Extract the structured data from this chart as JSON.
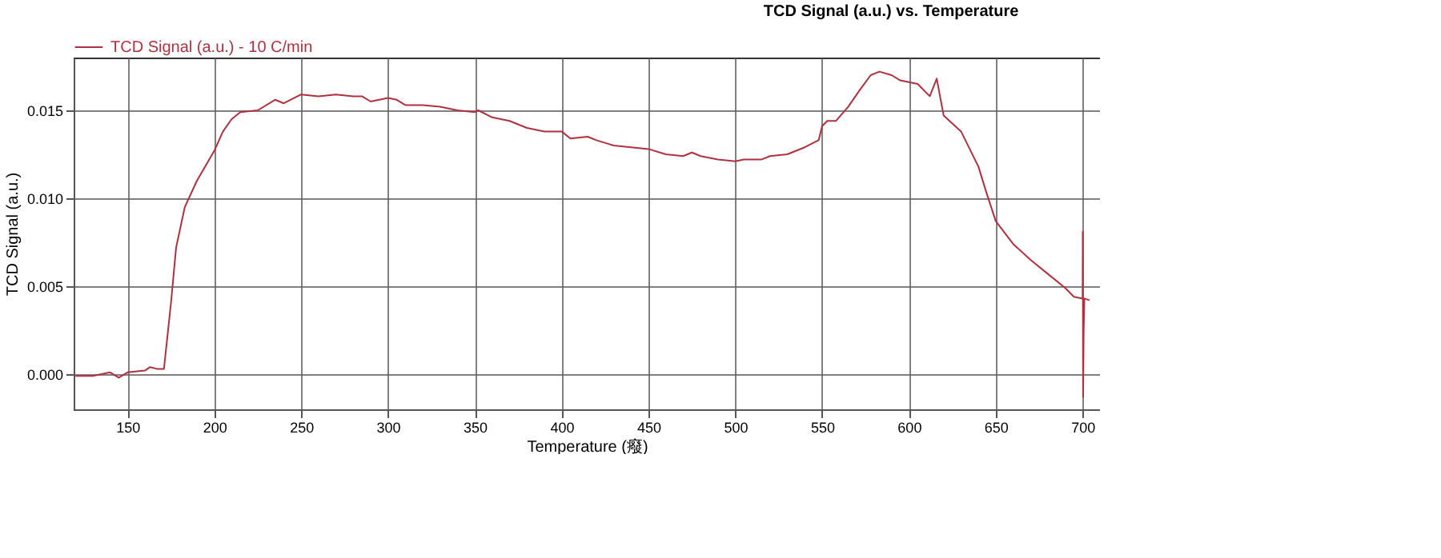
{
  "chart_data": {
    "type": "line",
    "title": "TCD Signal (a.u.) vs. Temperature",
    "xlabel": "Temperature (癈)",
    "ylabel": "TCD Signal (a.u.)",
    "xlim": [
      119,
      710
    ],
    "xticks": [
      150,
      200,
      250,
      300,
      350,
      400,
      450,
      500,
      550,
      600,
      650,
      700
    ],
    "ylim": [
      -0.002,
      0.018
    ],
    "yticks": [
      {
        "value": 0,
        "label": "0.000"
      },
      {
        "value": 0.005,
        "label": "0.005"
      },
      {
        "value": 0.01,
        "label": "0.010"
      },
      {
        "value": 0.015,
        "label": "0.015"
      }
    ],
    "grid": true,
    "legend": "top left",
    "marker": "none",
    "line_style": "solid",
    "x": [
      120,
      130,
      140,
      145,
      150,
      160,
      163,
      167,
      171,
      175,
      178,
      183,
      190,
      200,
      205,
      210,
      215,
      225,
      235,
      240,
      250,
      260,
      270,
      280,
      285,
      290,
      300,
      305,
      310,
      320,
      330,
      340,
      350,
      352,
      360,
      370,
      380,
      390,
      400,
      405,
      415,
      420,
      430,
      440,
      450,
      460,
      470,
      475,
      480,
      490,
      500,
      505,
      515,
      520,
      530,
      540,
      548,
      550,
      553,
      558,
      565,
      572,
      578,
      583,
      590,
      595,
      600,
      605,
      612,
      616,
      620,
      630,
      640,
      645,
      650,
      660,
      670,
      680,
      690,
      695,
      700,
      700.1,
      700.3,
      700.6,
      701,
      704
    ],
    "series": [
      {
        "name": "TCD Signal (a.u.) - 10 C/min",
        "color": "#b03040",
        "values": [
          -0.0001,
          -0.0001,
          0.0001,
          -0.0002,
          0.0001,
          0.0002,
          0.0004,
          0.0003,
          0.0003,
          0.004,
          0.0072,
          0.0095,
          0.011,
          0.0127,
          0.0138,
          0.0145,
          0.0149,
          0.015,
          0.0156,
          0.0154,
          0.0159,
          0.0158,
          0.0159,
          0.0158,
          0.0158,
          0.0155,
          0.0157,
          0.0156,
          0.0153,
          0.0153,
          0.0152,
          0.015,
          0.0149,
          0.015,
          0.0146,
          0.0144,
          0.014,
          0.0138,
          0.0138,
          0.0134,
          0.0135,
          0.0133,
          0.013,
          0.0129,
          0.0128,
          0.0125,
          0.0124,
          0.0126,
          0.0124,
          0.0122,
          0.0121,
          0.0122,
          0.0122,
          0.0124,
          0.0125,
          0.0129,
          0.0133,
          0.0141,
          0.0144,
          0.0144,
          0.0152,
          0.0162,
          0.017,
          0.0172,
          0.017,
          0.0167,
          0.0166,
          0.0165,
          0.0158,
          0.0168,
          0.0147,
          0.0138,
          0.0118,
          0.0102,
          0.0087,
          0.0074,
          0.0065,
          0.0057,
          0.0049,
          0.0044,
          0.0043,
          0.0081,
          -0.0013,
          0.0024,
          0.0043,
          0.0042
        ]
      }
    ]
  }
}
